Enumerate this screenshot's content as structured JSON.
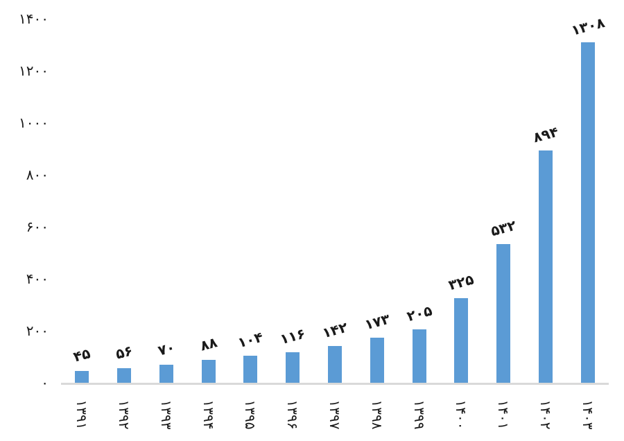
{
  "chart_data": {
    "type": "bar",
    "title": "",
    "xlabel": "",
    "ylabel": "",
    "categories": [
      "1391",
      "1392",
      "1393",
      "1394",
      "1395",
      "1396",
      "1397",
      "1398",
      "1399",
      "1400",
      "1401",
      "1402",
      "1403"
    ],
    "categories_display": [
      "۱۳۹۱",
      "۱۳۹۲",
      "۱۳۹۳",
      "۱۳۹۴",
      "۱۳۹۵",
      "۱۳۹۶",
      "۱۳۹۷",
      "۱۳۹۸",
      "۱۳۹۹",
      "۱۴۰۰",
      "۱۴۰۱",
      "۱۴۰۲",
      "۱۴۰۳"
    ],
    "values": [
      45,
      56,
      70,
      88,
      104,
      116,
      142,
      173,
      205,
      325,
      532,
      894,
      1308
    ],
    "value_labels_display": [
      "۴۵",
      "۵۶",
      "۷۰",
      "۸۸",
      "۱۰۴",
      "۱۱۶",
      "۱۴۲",
      "۱۷۳",
      "۲۰۵",
      "۳۲۵",
      "۵۳۲",
      "۸۹۴",
      "۱۳۰۸"
    ],
    "y_ticks": [
      0,
      200,
      400,
      600,
      800,
      1000,
      1200,
      1400
    ],
    "y_tick_labels_display": [
      "۰",
      "۲۰۰",
      "۴۰۰",
      "۶۰۰",
      "۸۰۰",
      "۱۰۰۰",
      "۱۲۰۰",
      "۱۴۰۰"
    ],
    "ylim": [
      0,
      1400
    ],
    "grid": false,
    "legend_position": "none",
    "bar_color": "#5B9BD5",
    "axis_line_color": "#D9D9D9",
    "label_color": "#1A1A1A"
  }
}
